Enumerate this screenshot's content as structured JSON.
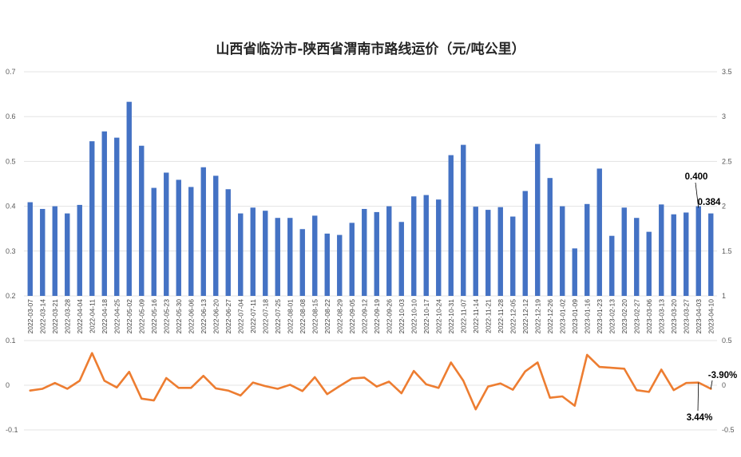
{
  "chart_data": [
    {
      "type": "bar",
      "title": "山西省临汾市-陕西省渭南市路线运价（元/吨公里）",
      "y_left_ticks": [
        "0.2",
        "0.3",
        "0.4",
        "0.5",
        "0.6",
        "0.7"
      ],
      "y_right_ticks": [
        "1",
        "1.5",
        "2",
        "2.5",
        "3",
        "3.5"
      ],
      "ylim": [
        0.2,
        0.7
      ],
      "y2lim": [
        1,
        3.5
      ],
      "grid": true,
      "bar_color": "#4472C4",
      "categories": [
        "2022-03-07",
        "2022-03-14",
        "2022-03-21",
        "2022-03-28",
        "2022-04-04",
        "2022-04-11",
        "2022-04-18",
        "2022-04-25",
        "2022-05-02",
        "2022-05-09",
        "2022-05-16",
        "2022-05-23",
        "2022-05-30",
        "2022-06-06",
        "2022-06-13",
        "2022-06-20",
        "2022-06-27",
        "2022-07-04",
        "2022-07-11",
        "2022-07-18",
        "2022-07-25",
        "2022-08-01",
        "2022-08-08",
        "2022-08-15",
        "2022-08-22",
        "2022-08-29",
        "2022-09-05",
        "2022-09-12",
        "2022-09-19",
        "2022-09-26",
        "2022-10-03",
        "2022-10-10",
        "2022-10-17",
        "2022-10-24",
        "2022-10-31",
        "2022-11-07",
        "2022-11-14",
        "2022-11-21",
        "2022-11-28",
        "2022-12-05",
        "2022-12-12",
        "2022-12-19",
        "2022-12-26",
        "2023-01-02",
        "2023-01-09",
        "2023-01-16",
        "2023-01-23",
        "2023-02-13",
        "2023-02-20",
        "2023-02-27",
        "2023-03-06",
        "2023-03-13",
        "2023-03-20",
        "2023-03-27",
        "2023-04-03",
        "2023-04-10"
      ],
      "values": [
        0.409,
        0.394,
        0.4,
        0.384,
        0.403,
        0.545,
        0.567,
        0.553,
        0.633,
        0.535,
        0.441,
        0.475,
        0.459,
        0.443,
        0.487,
        0.468,
        0.438,
        0.384,
        0.397,
        0.39,
        0.374,
        0.374,
        0.349,
        0.379,
        0.339,
        0.336,
        0.363,
        0.394,
        0.387,
        0.4,
        0.365,
        0.422,
        0.425,
        0.415,
        0.514,
        0.537,
        0.399,
        0.392,
        0.398,
        0.377,
        0.434,
        0.539,
        0.463,
        0.4,
        0.306,
        0.405,
        0.484,
        0.334,
        0.397,
        0.374,
        0.343,
        0.404,
        0.382,
        0.386,
        0.4,
        0.384
      ],
      "annotations": {
        "prev_value": "0.400",
        "last_value": "0.384"
      }
    },
    {
      "type": "line",
      "y_left_ticks": [
        "-0.1",
        "0",
        "0.1"
      ],
      "y_right_ticks": [
        "-0.5",
        "0",
        "0.5"
      ],
      "ylim": [
        -0.1,
        0.1
      ],
      "grid": true,
      "line_color": "#ED7D31",
      "values": [
        -0.012,
        -0.008,
        0.005,
        -0.008,
        0.01,
        0.072,
        0.01,
        -0.005,
        0.03,
        -0.03,
        -0.034,
        0.016,
        -0.006,
        -0.006,
        0.021,
        -0.007,
        -0.012,
        -0.023,
        0.006,
        -0.002,
        -0.008,
        0.001,
        -0.013,
        0.018,
        -0.02,
        -0.002,
        0.015,
        0.017,
        -0.003,
        0.008,
        -0.018,
        0.032,
        0.002,
        -0.006,
        0.051,
        0.01,
        -0.054,
        -0.003,
        0.004,
        -0.01,
        0.031,
        0.051,
        -0.028,
        -0.025,
        -0.046,
        0.068,
        0.041,
        0.039,
        0.037,
        -0.011,
        -0.015,
        0.035,
        -0.011,
        0.005,
        0.006,
        -0.008
      ],
      "annotations": {
        "prev_change": "3.44%",
        "last_change": "-3.90%"
      }
    }
  ]
}
